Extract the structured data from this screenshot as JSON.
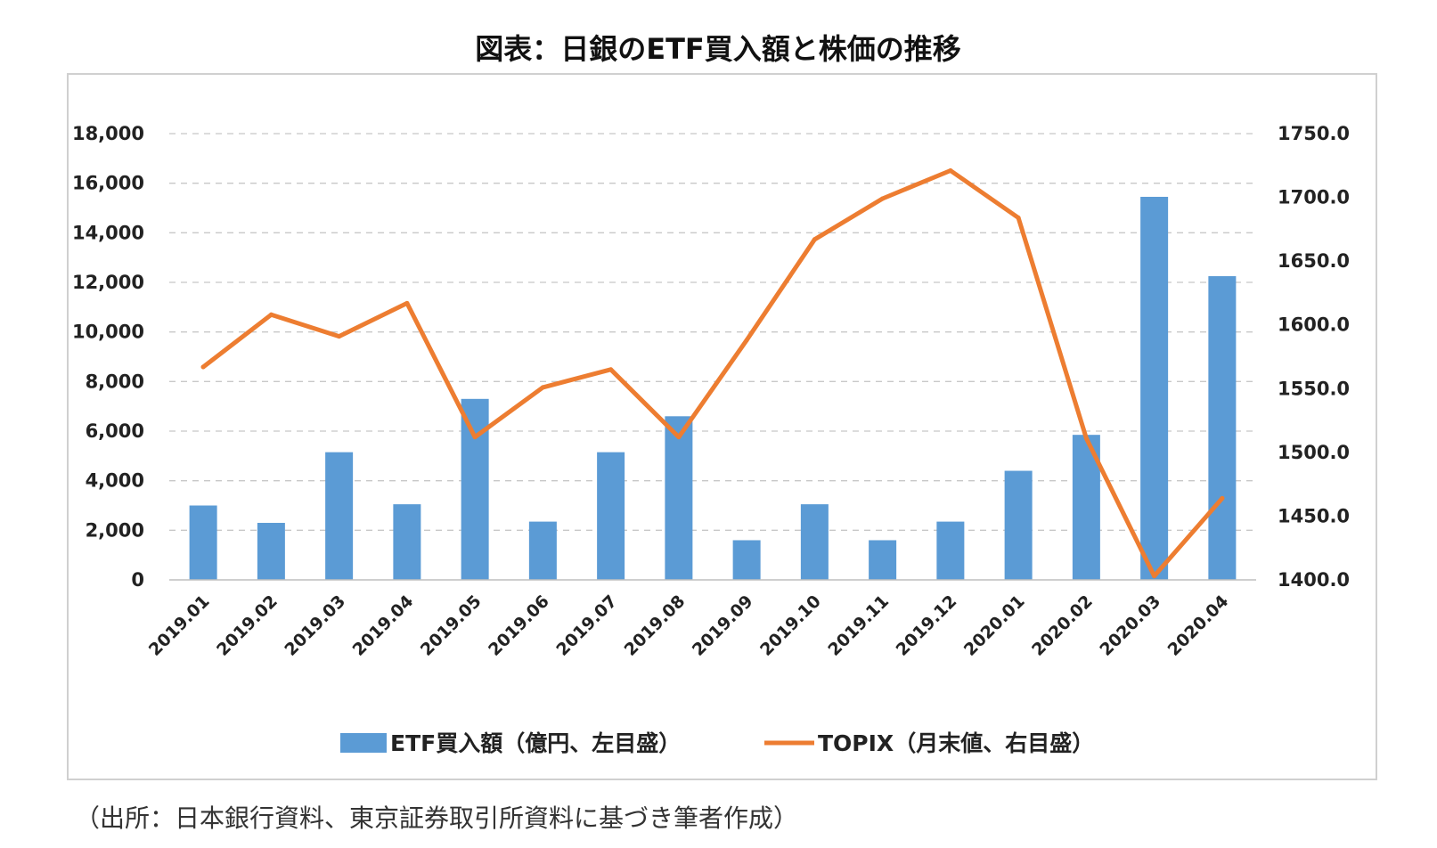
{
  "chart_data": {
    "type": "bar+line",
    "title": "図表：日銀のETF買入額と株価の推移",
    "source": "（出所：日本銀行資料、東京証券取引所資料に基づき筆者作成）",
    "categories": [
      "2019.01",
      "2019.02",
      "2019.03",
      "2019.04",
      "2019.05",
      "2019.06",
      "2019.07",
      "2019.08",
      "2019.09",
      "2019.10",
      "2019.11",
      "2019.12",
      "2020.01",
      "2020.02",
      "2020.03",
      "2020.04"
    ],
    "series": [
      {
        "name": "ETF買入額（億円、左目盛）",
        "type": "bar",
        "axis": "left",
        "color": "#5b9bd5",
        "values": [
          3000,
          2300,
          5150,
          3050,
          7300,
          2350,
          5150,
          6600,
          1600,
          3050,
          1600,
          2350,
          4400,
          5850,
          15450,
          12250
        ]
      },
      {
        "name": "TOPIX（月末値、右目盛）",
        "type": "line",
        "axis": "right",
        "color": "#ed7d31",
        "values": [
          1567,
          1608,
          1591,
          1617,
          1512,
          1551,
          1565,
          1512,
          1588,
          1667,
          1699,
          1721,
          1684,
          1511,
          1403,
          1464
        ]
      }
    ],
    "y_left": {
      "min": 0,
      "max": 18000,
      "ticks": [
        "0",
        "2,000",
        "4,000",
        "6,000",
        "8,000",
        "10,000",
        "12,000",
        "14,000",
        "16,000",
        "18,000"
      ]
    },
    "y_right": {
      "min": 1400,
      "max": 1750,
      "ticks": [
        "1400.0",
        "1450.0",
        "1500.0",
        "1550.0",
        "1600.0",
        "1650.0",
        "1700.0",
        "1750.0"
      ]
    },
    "grid": "horizontal-dashed",
    "legend": "bottom"
  }
}
